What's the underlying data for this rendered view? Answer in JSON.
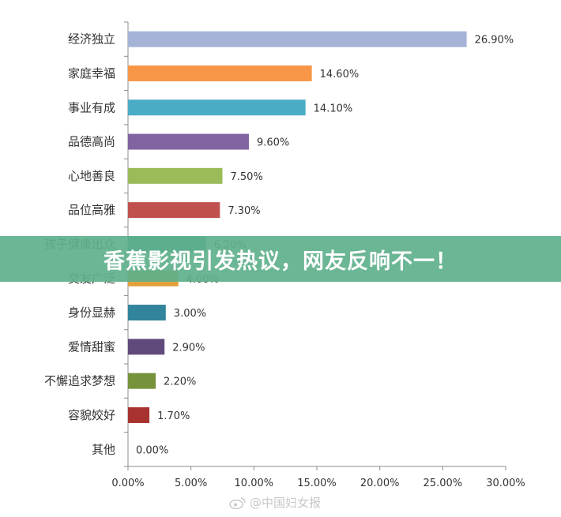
{
  "chart_data": {
    "type": "bar",
    "orientation": "horizontal",
    "title": "",
    "xlabel": "",
    "ylabel": "",
    "xlim": [
      0,
      30
    ],
    "x_ticks": [
      "0.00%",
      "5.00%",
      "10.00%",
      "15.00%",
      "20.00%",
      "25.00%",
      "30.00%"
    ],
    "grid": false,
    "legend": "none",
    "categories": [
      "经济独立",
      "家庭幸福",
      "事业有成",
      "品德高尚",
      "心地善良",
      "品位高雅",
      "孩子健康出众",
      "交友广泛",
      "身份显赫",
      "爱情甜蜜",
      "不懈追求梦想",
      "容貌姣好",
      "其他"
    ],
    "values": [
      26.9,
      14.6,
      14.1,
      9.6,
      7.5,
      7.3,
      6.2,
      4.0,
      3.0,
      2.9,
      2.2,
      1.7,
      0.0
    ],
    "value_labels": [
      "26.90%",
      "14.60%",
      "14.10%",
      "9.60%",
      "7.50%",
      "7.30%",
      "6.20%",
      "4.00%",
      "3.00%",
      "2.90%",
      "2.20%",
      "1.70%",
      "0.00%"
    ],
    "colors": [
      "#A5B3D7",
      "#F79646",
      "#4BACC6",
      "#8064A2",
      "#9BBB59",
      "#C0504D",
      "#2D8F8F",
      "#E2A13B",
      "#31849B",
      "#604A7B",
      "#76933C",
      "#A8322F",
      "#7F7F7F"
    ]
  },
  "banner": {
    "text": "香蕉影视引发热议，网友反响不一！"
  },
  "watermark": {
    "text": "@中国妇女报",
    "icon": "weibo-icon"
  }
}
